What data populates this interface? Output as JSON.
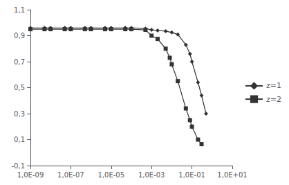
{
  "chart_data": {
    "type": "line",
    "log": "x",
    "grid": false,
    "legend": "right",
    "xlim": [
      1e-09,
      10.0
    ],
    "ylim": [
      -0.1,
      1.1
    ],
    "xticks": [
      {
        "value": 1e-09,
        "label": "1,0E-09"
      },
      {
        "value": 1e-07,
        "label": "1,0E-07"
      },
      {
        "value": 1e-05,
        "label": "1,0E-05"
      },
      {
        "value": 0.001,
        "label": "1,0E-03"
      },
      {
        "value": 0.1,
        "label": "1,0E-01"
      },
      {
        "value": 10.0,
        "label": "1,0E+01"
      }
    ],
    "yticks": [
      {
        "value": -0.1,
        "label": "-0,1"
      },
      {
        "value": 0.1,
        "label": "0,1"
      },
      {
        "value": 0.3,
        "label": "0,3"
      },
      {
        "value": 0.5,
        "label": "0,5"
      },
      {
        "value": 0.7,
        "label": "0,7"
      },
      {
        "value": 0.9,
        "label": "0,9"
      },
      {
        "value": 1.1,
        "label": "1,1"
      }
    ],
    "series": [
      {
        "name": "z=1",
        "color": "#333333",
        "marker": "diamond",
        "x": [
          1e-09,
          5e-09,
          1e-08,
          5e-08,
          1e-07,
          5e-07,
          1e-06,
          5e-06,
          1e-05,
          5e-05,
          0.0001,
          0.0005,
          0.001,
          0.002,
          0.005,
          0.01,
          0.02,
          0.05,
          0.08,
          0.1,
          0.2,
          0.3,
          0.5
        ],
        "values": [
          0.96,
          0.96,
          0.96,
          0.96,
          0.96,
          0.96,
          0.96,
          0.96,
          0.96,
          0.96,
          0.96,
          0.955,
          0.945,
          0.94,
          0.935,
          0.925,
          0.91,
          0.83,
          0.76,
          0.7,
          0.54,
          0.44,
          0.3
        ]
      },
      {
        "name": "z=2",
        "color": "#333333",
        "marker": "square",
        "x": [
          1e-09,
          5e-09,
          1e-08,
          5e-08,
          1e-07,
          5e-07,
          1e-06,
          5e-06,
          1e-05,
          5e-05,
          0.0001,
          0.0005,
          0.001,
          0.002,
          0.005,
          0.008,
          0.01,
          0.02,
          0.05,
          0.08,
          0.1,
          0.2,
          0.3
        ],
        "values": [
          0.95,
          0.95,
          0.95,
          0.95,
          0.95,
          0.95,
          0.95,
          0.95,
          0.95,
          0.95,
          0.95,
          0.945,
          0.9,
          0.875,
          0.8,
          0.73,
          0.68,
          0.55,
          0.34,
          0.25,
          0.2,
          0.1,
          0.065
        ]
      }
    ]
  }
}
